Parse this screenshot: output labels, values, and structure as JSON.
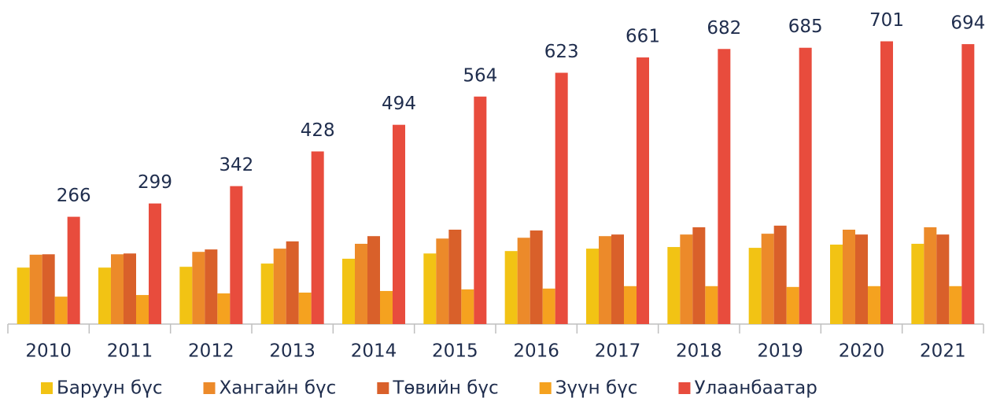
{
  "chart_data": {
    "type": "bar",
    "categories": [
      "2010",
      "2011",
      "2012",
      "2013",
      "2014",
      "2015",
      "2016",
      "2017",
      "2018",
      "2019",
      "2020",
      "2021"
    ],
    "series": [
      {
        "name": "Баруун бүс",
        "color": "#f2c314",
        "values": [
          140,
          140,
          142,
          150,
          162,
          175,
          181,
          187,
          191,
          189,
          197,
          199
        ]
      },
      {
        "name": "Хангайн бүс",
        "color": "#ec8a2a",
        "values": [
          172,
          173,
          179,
          187,
          199,
          212,
          214,
          218,
          222,
          224,
          234,
          240
        ]
      },
      {
        "name": "Төвийн бүс",
        "color": "#d9602a",
        "values": [
          173,
          175,
          185,
          205,
          218,
          234,
          232,
          222,
          240,
          244,
          222,
          222
        ]
      },
      {
        "name": "Зүүн бүс",
        "color": "#f5a21f",
        "values": [
          68,
          72,
          76,
          78,
          82,
          86,
          88,
          94,
          94,
          92,
          94,
          94
        ]
      },
      {
        "name": "Улаанбаатар",
        "color": "#e84c3d",
        "values": [
          266,
          299,
          342,
          428,
          494,
          564,
          623,
          661,
          682,
          685,
          701,
          694
        ],
        "show_labels": true
      }
    ],
    "ylim": [
      0,
      780
    ],
    "legend": "bottom"
  }
}
